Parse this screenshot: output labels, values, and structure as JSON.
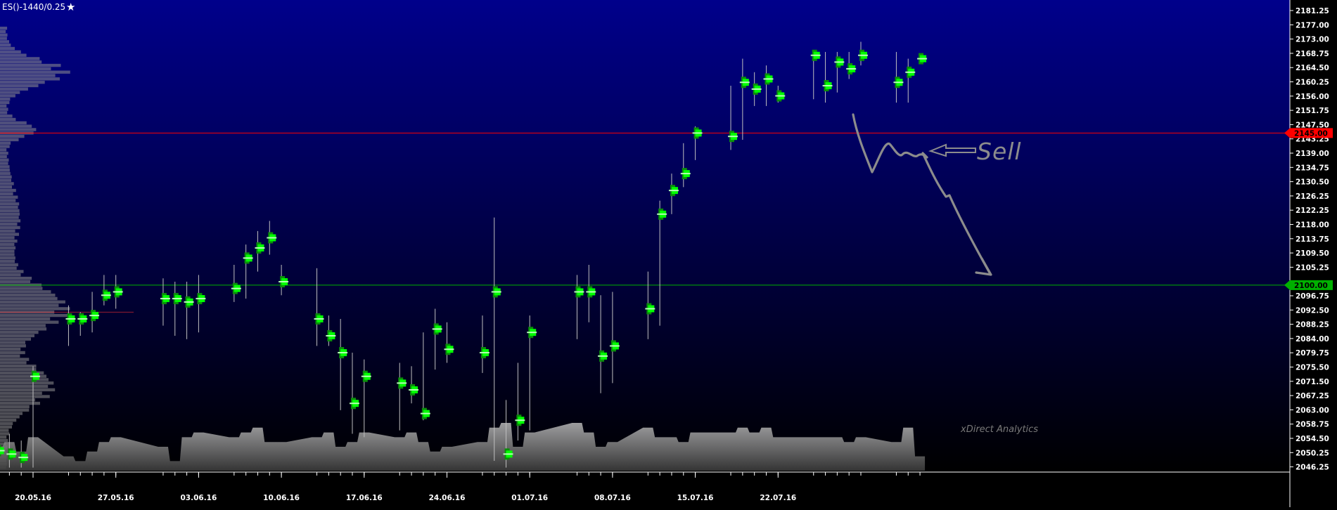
{
  "header": {
    "symbol_label": "ES()-1440/0.25",
    "star_icon": "star-icon"
  },
  "watermark": "xDirect Analytics",
  "annotation": {
    "text": "Sell"
  },
  "colors": {
    "background_top": "#00008b",
    "background_bottom": "#000000",
    "resistance_line": "#ff0000",
    "support_line": "#00b000",
    "up_bar": "#00ff00",
    "bar_wick": "#bfbfbf",
    "axis": "#ffffff",
    "annotation": "#8c8c8c"
  },
  "chart_data": {
    "type": "candlestick",
    "title": "ES()-1440/0.25",
    "y_ticks": [
      "2181.25",
      "2177.00",
      "2173.00",
      "2168.75",
      "2164.50",
      "2160.25",
      "2156.00",
      "2151.75",
      "2147.50",
      "2143.25",
      "2139.00",
      "2134.75",
      "2130.50",
      "2126.25",
      "2122.25",
      "2118.00",
      "2113.75",
      "2109.50",
      "2105.25",
      "2101.00",
      "2096.75",
      "2092.50",
      "2088.25",
      "2084.00",
      "2079.75",
      "2075.50",
      "2071.50",
      "2067.25",
      "2063.00",
      "2058.75",
      "2054.50",
      "2050.25",
      "2046.25"
    ],
    "ylim": [
      2044,
      2185
    ],
    "x_ticks": [
      "20.05.16",
      "27.05.16",
      "03.06.16",
      "10.06.16",
      "17.06.16",
      "24.06.16",
      "01.07.16",
      "08.07.16",
      "15.07.16",
      "22.07.16"
    ],
    "price_levels": [
      {
        "label": "2145.00",
        "value": 2145.0,
        "color": "#ff0000"
      },
      {
        "label": "2100.00",
        "value": 2100.0,
        "color": "#00b000"
      }
    ],
    "bars": [
      {
        "date": "2016-05-17",
        "high": 2057,
        "low": 2046,
        "poc": 2051
      },
      {
        "date": "2016-05-18",
        "high": 2056,
        "low": 2046,
        "poc": 2050
      },
      {
        "date": "2016-05-19",
        "high": 2054,
        "low": 2046,
        "poc": 2049
      },
      {
        "date": "2016-05-20",
        "high": 2076,
        "low": 2046,
        "poc": 2073
      },
      {
        "date": "2016-05-23",
        "high": 2094,
        "low": 2082,
        "poc": 2090
      },
      {
        "date": "2016-05-24",
        "high": 2092,
        "low": 2085,
        "poc": 2090
      },
      {
        "date": "2016-05-25",
        "high": 2098,
        "low": 2086,
        "poc": 2091
      },
      {
        "date": "2016-05-26",
        "high": 2103,
        "low": 2094,
        "poc": 2097
      },
      {
        "date": "2016-05-27",
        "high": 2103,
        "low": 2093,
        "poc": 2098
      },
      {
        "date": "2016-05-31",
        "high": 2102,
        "low": 2088,
        "poc": 2096
      },
      {
        "date": "2016-06-01",
        "high": 2101,
        "low": 2085,
        "poc": 2096
      },
      {
        "date": "2016-06-02",
        "high": 2101,
        "low": 2084,
        "poc": 2095
      },
      {
        "date": "2016-06-03",
        "high": 2103,
        "low": 2086,
        "poc": 2096
      },
      {
        "date": "2016-06-06",
        "high": 2106,
        "low": 2095,
        "poc": 2099
      },
      {
        "date": "2016-06-07",
        "high": 2112,
        "low": 2096,
        "poc": 2108
      },
      {
        "date": "2016-06-08",
        "high": 2116,
        "low": 2104,
        "poc": 2111
      },
      {
        "date": "2016-06-09",
        "high": 2119,
        "low": 2109,
        "poc": 2114
      },
      {
        "date": "2016-06-10",
        "high": 2106,
        "low": 2097,
        "poc": 2101
      },
      {
        "date": "2016-06-13",
        "high": 2105,
        "low": 2082,
        "poc": 2090
      },
      {
        "date": "2016-06-14",
        "high": 2091,
        "low": 2082,
        "poc": 2085
      },
      {
        "date": "2016-06-15",
        "high": 2090,
        "low": 2063,
        "poc": 2080
      },
      {
        "date": "2016-06-16",
        "high": 2080,
        "low": 2056,
        "poc": 2065
      },
      {
        "date": "2016-06-17",
        "high": 2078,
        "low": 2055,
        "poc": 2073
      },
      {
        "date": "2016-06-20",
        "high": 2077,
        "low": 2057,
        "poc": 2071
      },
      {
        "date": "2016-06-21",
        "high": 2076,
        "low": 2065,
        "poc": 2069
      },
      {
        "date": "2016-06-22",
        "high": 2086,
        "low": 2060,
        "poc": 2062
      },
      {
        "date": "2016-06-23",
        "high": 2093,
        "low": 2075,
        "poc": 2087
      },
      {
        "date": "2016-06-24",
        "high": 2089,
        "low": 2077,
        "poc": 2081
      },
      {
        "date": "2016-06-27",
        "high": 2091,
        "low": 2074,
        "poc": 2080
      },
      {
        "date": "2016-06-28",
        "high": 2120,
        "low": 2048,
        "poc": 2098
      },
      {
        "date": "2016-06-29",
        "high": 2066,
        "low": 2046,
        "poc": 2050
      },
      {
        "date": "2016-06-30",
        "high": 2077,
        "low": 2054,
        "poc": 2060
      },
      {
        "date": "2016-07-01",
        "high": 2091,
        "low": 2057,
        "poc": 2086
      },
      {
        "date": "2016-07-05",
        "high": 2103,
        "low": 2084,
        "poc": 2098
      },
      {
        "date": "2016-07-06",
        "high": 2106,
        "low": 2089,
        "poc": 2098
      },
      {
        "date": "2016-07-07",
        "high": 2097,
        "low": 2068,
        "poc": 2079
      },
      {
        "date": "2016-07-08",
        "high": 2098,
        "low": 2071,
        "poc": 2082
      },
      {
        "date": "2016-07-11",
        "high": 2104,
        "low": 2084,
        "poc": 2093
      },
      {
        "date": "2016-07-12",
        "high": 2125,
        "low": 2088,
        "poc": 2121
      },
      {
        "date": "2016-07-13",
        "high": 2133,
        "low": 2121,
        "poc": 2128
      },
      {
        "date": "2016-07-14",
        "high": 2142,
        "low": 2129,
        "poc": 2133
      },
      {
        "date": "2016-07-15",
        "high": 2147,
        "low": 2137,
        "poc": 2145
      },
      {
        "date": "2016-07-18",
        "high": 2159,
        "low": 2140,
        "poc": 2144
      },
      {
        "date": "2016-07-19",
        "high": 2167,
        "low": 2143,
        "poc": 2160
      },
      {
        "date": "2016-07-20",
        "high": 2163,
        "low": 2153,
        "poc": 2158
      },
      {
        "date": "2016-07-21",
        "high": 2165,
        "low": 2153,
        "poc": 2161
      },
      {
        "date": "2016-07-22",
        "high": 2159,
        "low": 2154,
        "poc": 2156
      },
      {
        "date": "2016-07-25",
        "high": 2168,
        "low": 2155,
        "poc": 2168
      },
      {
        "date": "2016-07-26",
        "high": 2169,
        "low": 2154,
        "poc": 2159
      },
      {
        "date": "2016-07-27",
        "high": 2169,
        "low": 2157,
        "poc": 2166
      },
      {
        "date": "2016-07-28",
        "high": 2169,
        "low": 2161,
        "poc": 2164
      },
      {
        "date": "2016-07-29",
        "high": 2172,
        "low": 2165,
        "poc": 2168
      },
      {
        "date": "2016-08-01",
        "high": 2169,
        "low": 2154,
        "poc": 2160
      },
      {
        "date": "2016-08-02",
        "high": 2167,
        "low": 2154,
        "poc": 2163
      },
      {
        "date": "2016-08-03",
        "high": 2168,
        "low": 2167,
        "poc": 2167
      }
    ],
    "volume_relative": [
      0.5,
      0.6,
      0.4,
      0.7,
      0.3,
      0.2,
      0.4,
      0.6,
      0.7,
      0.5,
      0.2,
      0.7,
      0.8,
      0.7,
      0.8,
      0.9,
      0.6,
      0.6,
      0.7,
      0.8,
      0.5,
      0.6,
      0.8,
      0.7,
      0.8,
      0.6,
      0.4,
      0.5,
      0.6,
      0.9,
      1.0,
      0.5,
      0.8,
      1.0,
      0.8,
      0.5,
      0.6,
      0.9,
      0.7,
      0.7,
      0.6,
      0.8,
      0.8,
      0.9,
      0.8,
      0.9,
      0.7,
      0.7,
      0.7,
      0.7,
      0.6,
      0.7,
      0.6,
      0.9,
      0.3
    ]
  }
}
